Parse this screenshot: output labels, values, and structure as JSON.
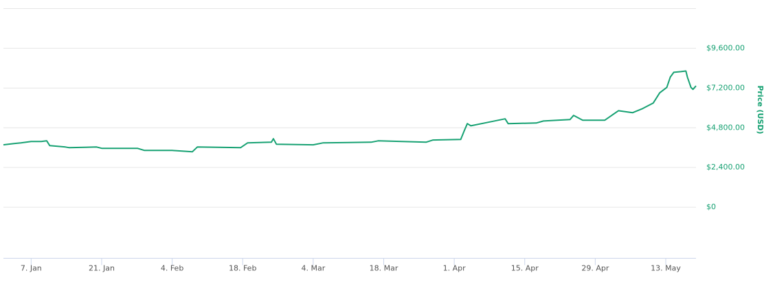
{
  "chart_data": {
    "type": "line",
    "y_label": "Price (USD)",
    "color": "#16a172",
    "x": [
      1.5,
      3.6,
      5,
      7,
      9,
      10.1,
      10.7,
      13.8,
      14.5,
      20,
      21,
      28.1,
      29.5,
      35,
      39,
      40,
      48.6,
      50,
      54.7,
      55.1,
      55.7,
      63,
      65,
      74.5,
      75.9,
      85.4,
      86.8,
      92.3,
      93,
      93.6,
      94.3,
      97.7,
      101.1,
      101.7,
      107.3,
      108.7,
      114,
      114.7,
      116.5,
      120.9,
      123.6,
      126.4,
      128.4,
      130.5,
      131.8,
      133.2,
      133.9,
      134.6,
      136,
      137,
      137.3,
      138,
      138.4,
      139
    ],
    "values": [
      3770,
      3850,
      3890,
      3970,
      3970,
      4010,
      3720,
      3640,
      3600,
      3640,
      3560,
      3560,
      3430,
      3430,
      3350,
      3640,
      3600,
      3890,
      3930,
      4140,
      3810,
      3770,
      3890,
      3930,
      4010,
      3930,
      4060,
      4100,
      4630,
      5050,
      4920,
      5130,
      5340,
      5050,
      5090,
      5210,
      5300,
      5550,
      5260,
      5260,
      5830,
      5710,
      5960,
      6290,
      6910,
      7240,
      7860,
      8150,
      8190,
      8230,
      7860,
      7240,
      7120,
      7330
    ],
    "xlim": [
      1.5,
      139
    ],
    "xticks": [
      {
        "value": 7,
        "label": "7. Jan"
      },
      {
        "value": 21,
        "label": "21. Jan"
      },
      {
        "value": 35,
        "label": "4. Feb"
      },
      {
        "value": 49,
        "label": "18. Feb"
      },
      {
        "value": 63,
        "label": "4. Mar"
      },
      {
        "value": 77,
        "label": "18. Mar"
      },
      {
        "value": 91,
        "label": "1. Apr"
      },
      {
        "value": 105,
        "label": "15. Apr"
      },
      {
        "value": 119,
        "label": "29. Apr"
      },
      {
        "value": 133,
        "label": "13. May"
      }
    ],
    "ylim": [
      -3000,
      12000
    ],
    "yticks": [
      {
        "value": 0,
        "label": "$0"
      },
      {
        "value": 2400,
        "label": "$2,400.00"
      },
      {
        "value": 4800,
        "label": "$4,800.00"
      },
      {
        "value": 7200,
        "label": "$7,200.00"
      },
      {
        "value": 9600,
        "label": "$9,600.00"
      }
    ],
    "grid": true
  }
}
